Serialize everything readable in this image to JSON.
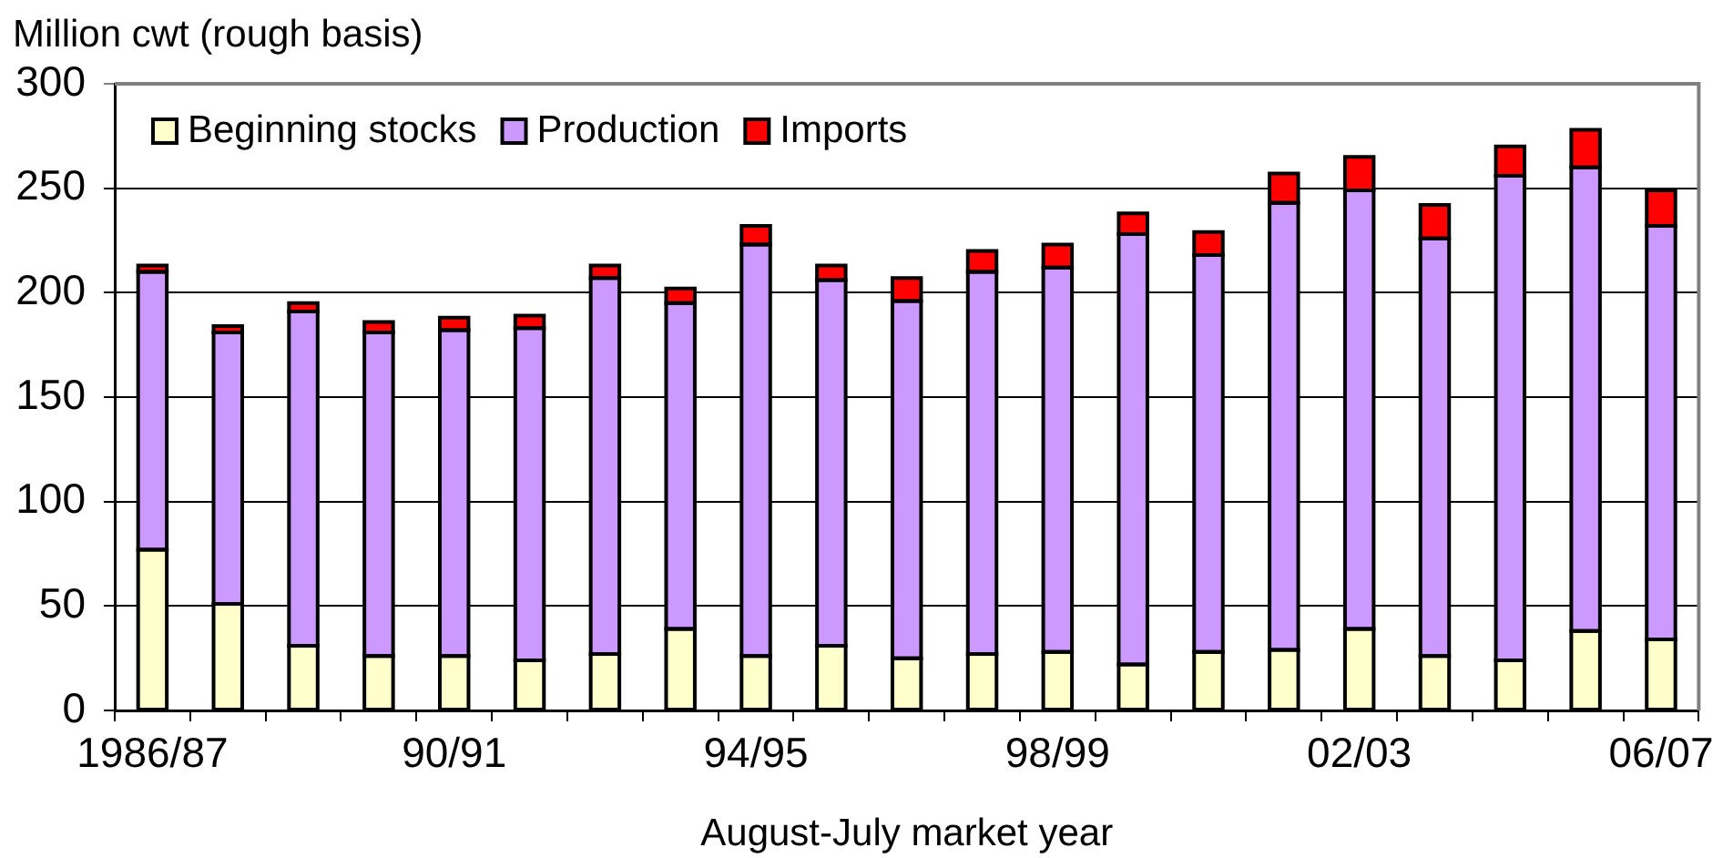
{
  "chart_data": {
    "type": "bar",
    "stacked": true,
    "ylabel": "Million cwt (rough basis)",
    "xlabel": "August-July market year",
    "categories": [
      "1986/87",
      null,
      null,
      null,
      "90/91",
      null,
      null,
      null,
      "94/95",
      null,
      null,
      null,
      "98/99",
      null,
      null,
      null,
      "02/03",
      null,
      null,
      null,
      "06/07"
    ],
    "series": [
      {
        "name": "Beginning stocks",
        "color": "#ffffcc",
        "values": [
          77,
          51,
          31,
          26,
          26,
          24,
          27,
          39,
          26,
          31,
          25,
          27,
          28,
          22,
          28,
          29,
          39,
          26,
          24,
          38,
          34
        ]
      },
      {
        "name": "Production",
        "color": "#cc99ff",
        "values": [
          133,
          130,
          160,
          155,
          156,
          159,
          180,
          156,
          197,
          175,
          171,
          183,
          184,
          206,
          190,
          214,
          210,
          200,
          232,
          222,
          198
        ]
      },
      {
        "name": "Imports",
        "color": "#ff0000",
        "values": [
          3,
          3,
          4,
          5,
          6,
          6,
          6,
          7,
          9,
          7,
          11,
          10,
          11,
          10,
          11,
          14,
          16,
          16,
          14,
          18,
          17
        ]
      }
    ],
    "ylim": [
      0,
      300
    ],
    "yticks": [
      0,
      50,
      100,
      150,
      200,
      250,
      300
    ],
    "grid": "y",
    "legend": "top left"
  }
}
